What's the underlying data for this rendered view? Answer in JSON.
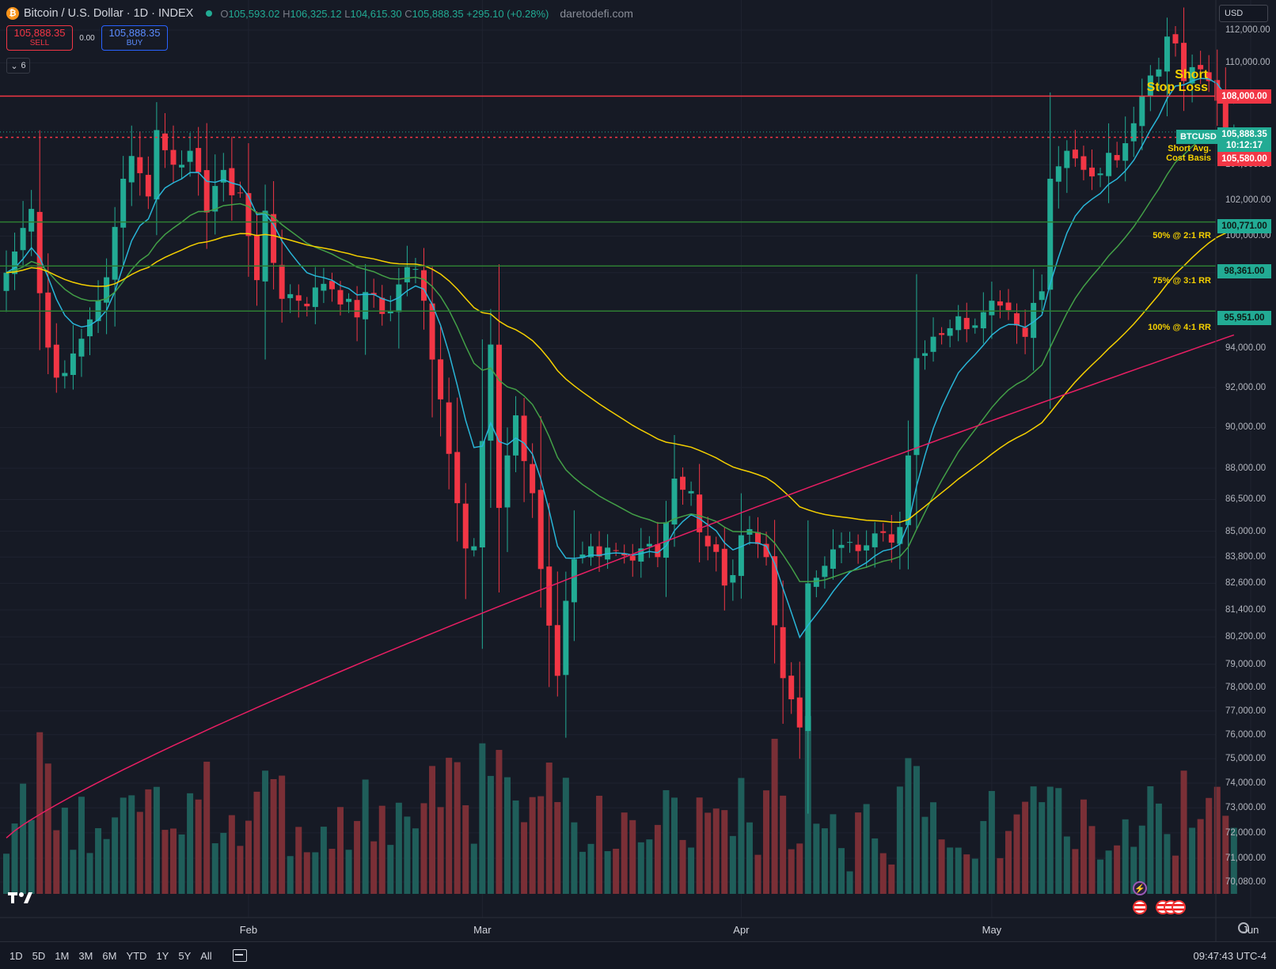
{
  "header": {
    "symbol_logo": "₿",
    "title": "Bitcoin / U.S. Dollar · 1D · INDEX",
    "open_label": "O",
    "open": "105,593.02",
    "high_label": "H",
    "high": "106,325.12",
    "low_label": "L",
    "low": "104,615.30",
    "close_label": "C",
    "close": "105,888.35",
    "change": "+295.10 (+0.28%)",
    "watermark": "daretodefi.com"
  },
  "trade": {
    "sell_price": "105,888.35",
    "sell_label": "SELL",
    "spread": "0.00",
    "buy_price": "105,888.35",
    "buy_label": "BUY"
  },
  "indicators": {
    "toggle_count": "6"
  },
  "currency": {
    "label": "USD"
  },
  "price_axis": [
    "112,000.00",
    "110,000.00",
    "104,000.00",
    "102,000.00",
    "100,000.00",
    "98,000.00",
    "94,000.00",
    "92,000.00",
    "90,000.00",
    "88,000.00",
    "86,500.00",
    "85,000.00",
    "83,800.00",
    "82,600.00",
    "81,400.00",
    "80,200.00",
    "79,000.00",
    "78,000.00",
    "77,000.00",
    "76,000.00",
    "75,000.00",
    "74,000.00",
    "73,000.00",
    "72,000.00",
    "71,000.00",
    "70,080.00"
  ],
  "levels": {
    "stop_loss": "108,000.00",
    "cost_basis": "105,580.00",
    "tp1": "100,771.00",
    "tp2": "98,361.00",
    "tp3": "95,951.00"
  },
  "current": {
    "symbol": "BTCUSD",
    "price": "105,888.35",
    "countdown": "10:12:17"
  },
  "annotations": {
    "short_line1": "Short",
    "short_line2": "Stop Loss",
    "cost_line1": "Short Avg.",
    "cost_line2": "Cost Basis",
    "tp1": "50% @ 2:1 RR",
    "tp2": "75% @ 3:1 RR",
    "tp3": "100% @ 4:1 RR"
  },
  "date_axis": [
    "Feb",
    "Mar",
    "Apr",
    "May",
    "Jun"
  ],
  "bottom": {
    "ranges": [
      "1D",
      "5D",
      "1M",
      "3M",
      "6M",
      "YTD",
      "1Y",
      "5Y",
      "All"
    ],
    "time": "09:47:43 UTC-4"
  },
  "icons": [
    "bitcoin-logo",
    "live-dot",
    "chevron-down-icon",
    "calendar-range-icon",
    "settings-icon",
    "tradingview-logo",
    "us-flag-event-icon",
    "lightning-event-icon"
  ],
  "colors": {
    "background": "#161a25",
    "up": "#22ab94",
    "down": "#f23645",
    "ema_fast": "#29b6d8",
    "ema_mid": "#43a047",
    "ema_slow": "#f5d000",
    "sma_long": "#e91e63",
    "annotation": "#f5d000"
  },
  "chart_data": {
    "type": "candlestick",
    "symbol": "BTCUSD",
    "timeframe": "1D",
    "x_range": [
      "2025-01-03",
      "2025-05-30"
    ],
    "ylim": [
      70080,
      112000
    ],
    "scale": "log",
    "grid": true,
    "horizontal_lines": [
      {
        "price": 108000,
        "color": "#f23645",
        "style": "solid",
        "label": "Short Stop Loss"
      },
      {
        "price": 105580,
        "color": "#f23645",
        "style": "dotted",
        "label": "Short Avg. Cost Basis"
      },
      {
        "price": 100771,
        "color": "#2e7d32",
        "style": "solid",
        "label": "50% @ 2:1 RR"
      },
      {
        "price": 98361,
        "color": "#2e7d32",
        "style": "solid",
        "label": "75% @ 3:1 RR"
      },
      {
        "price": 95951,
        "color": "#2e7d32",
        "style": "solid",
        "label": "100% @ 4:1 RR"
      }
    ],
    "close_series_anchors": [
      [
        "2025-01-03",
        98000
      ],
      [
        "2025-01-06",
        101500
      ],
      [
        "2025-01-07",
        96900
      ],
      [
        "2025-01-09",
        92500
      ],
      [
        "2025-01-12",
        94500
      ],
      [
        "2025-01-14",
        96500
      ],
      [
        "2025-01-16",
        100500
      ],
      [
        "2025-01-18",
        104500
      ],
      [
        "2025-01-20",
        102200
      ],
      [
        "2025-01-21",
        106000
      ],
      [
        "2025-01-23",
        104000
      ],
      [
        "2025-01-25",
        104800
      ],
      [
        "2025-01-27",
        101300
      ],
      [
        "2025-01-29",
        103700
      ],
      [
        "2025-01-31",
        102400
      ],
      [
        "2025-02-02",
        97600
      ],
      [
        "2025-02-03",
        101400
      ],
      [
        "2025-02-05",
        96600
      ],
      [
        "2025-02-07",
        96500
      ],
      [
        "2025-02-10",
        97400
      ],
      [
        "2025-02-13",
        96600
      ],
      [
        "2025-02-17",
        95800
      ],
      [
        "2025-02-20",
        98300
      ],
      [
        "2025-02-22",
        96500
      ],
      [
        "2025-02-24",
        91400
      ],
      [
        "2025-02-25",
        88700
      ],
      [
        "2025-02-27",
        84200
      ],
      [
        "2025-02-28",
        84300
      ],
      [
        "2025-03-02",
        94200
      ],
      [
        "2025-03-03",
        86100
      ],
      [
        "2025-03-05",
        90600
      ],
      [
        "2025-03-07",
        86800
      ],
      [
        "2025-03-09",
        80700
      ],
      [
        "2025-03-10",
        78500
      ],
      [
        "2025-03-12",
        83700
      ],
      [
        "2025-03-14",
        84300
      ],
      [
        "2025-03-17",
        84100
      ],
      [
        "2025-03-20",
        84200
      ],
      [
        "2025-03-22",
        83800
      ],
      [
        "2025-03-24",
        87500
      ],
      [
        "2025-03-26",
        86900
      ],
      [
        "2025-03-28",
        84300
      ],
      [
        "2025-03-30",
        82500
      ],
      [
        "2025-04-02",
        85100
      ],
      [
        "2025-04-04",
        83800
      ],
      [
        "2025-04-06",
        78400
      ],
      [
        "2025-04-08",
        76300
      ],
      [
        "2025-04-09",
        82600
      ],
      [
        "2025-04-11",
        83400
      ],
      [
        "2025-04-14",
        84500
      ],
      [
        "2025-04-17",
        84900
      ],
      [
        "2025-04-20",
        85200
      ],
      [
        "2025-04-22",
        93500
      ],
      [
        "2025-04-25",
        94700
      ],
      [
        "2025-04-28",
        95000
      ],
      [
        "2025-05-01",
        96500
      ],
      [
        "2025-05-03",
        96000
      ],
      [
        "2025-05-05",
        94600
      ],
      [
        "2025-05-07",
        97000
      ],
      [
        "2025-05-08",
        103200
      ],
      [
        "2025-05-10",
        104800
      ],
      [
        "2025-05-14",
        103500
      ],
      [
        "2025-05-18",
        106400
      ],
      [
        "2025-05-21",
        109600
      ],
      [
        "2025-05-22",
        111600
      ],
      [
        "2025-05-24",
        108900
      ],
      [
        "2025-05-27",
        108900
      ],
      [
        "2025-05-29",
        105600
      ],
      [
        "2025-05-30",
        105888
      ]
    ],
    "moving_averages": [
      {
        "name": "EMA fast",
        "color": "#29b6d8"
      },
      {
        "name": "EMA mid",
        "color": "#43a047"
      },
      {
        "name": "EMA slow",
        "color": "#f5d000"
      },
      {
        "name": "SMA long",
        "color": "#e91e63"
      }
    ],
    "volume": "per-candle histogram, colored by candle direction"
  }
}
